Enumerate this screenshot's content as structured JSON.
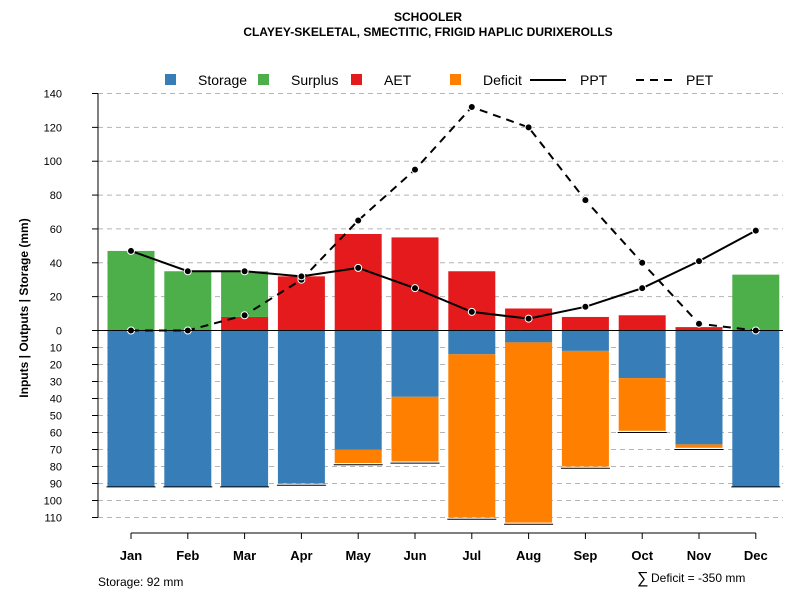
{
  "chart_data": {
    "type": "bar",
    "title": "SCHOOLER",
    "subtitle": "CLAYEY-SKELETAL, SMECTITIC, FRIGID HAPLIC DURIXEROLLS",
    "ylabel": "Inputs | Outputs | Storage     (mm)",
    "categories": [
      "Jan",
      "Feb",
      "Mar",
      "Apr",
      "May",
      "Jun",
      "Jul",
      "Aug",
      "Sep",
      "Oct",
      "Nov",
      "Dec"
    ],
    "y_upper": {
      "lim": [
        0,
        140
      ],
      "ticks": [
        "0",
        "20",
        "40",
        "60",
        "80",
        "100",
        "120",
        "140"
      ]
    },
    "y_lower": {
      "lim": [
        0,
        110
      ],
      "ticks": [
        "10",
        "20",
        "30",
        "40",
        "50",
        "60",
        "70",
        "80",
        "90",
        "100",
        "110"
      ]
    },
    "legend": [
      {
        "label": "Storage",
        "color": "#377EB8",
        "kind": "box"
      },
      {
        "label": "Surplus",
        "color": "#4DAF4A",
        "kind": "box"
      },
      {
        "label": "AET",
        "color": "#E41A1C",
        "kind": "box"
      },
      {
        "label": "Deficit",
        "color": "#FF7F00",
        "kind": "box"
      },
      {
        "label": "PPT",
        "color": "#000000",
        "kind": "solid"
      },
      {
        "label": "PET",
        "color": "#000000",
        "kind": "dashed"
      }
    ],
    "series": [
      {
        "name": "Surplus",
        "values": [
          47,
          35,
          27,
          0,
          0,
          0,
          0,
          0,
          0,
          0,
          0,
          33
        ]
      },
      {
        "name": "AET",
        "values": [
          0,
          0,
          8,
          32,
          57,
          55,
          35,
          13,
          8,
          9,
          2,
          0
        ]
      },
      {
        "name": "Storage",
        "values": [
          92,
          92,
          92,
          90,
          70,
          39,
          14,
          7,
          12,
          28,
          67,
          92
        ]
      },
      {
        "name": "Deficit",
        "values": [
          0,
          0,
          0,
          0,
          8,
          38,
          96,
          106,
          68,
          31,
          2,
          0
        ]
      },
      {
        "name": "PPT",
        "values": [
          47,
          35,
          35,
          32,
          37,
          25,
          11,
          7,
          14,
          25,
          41,
          59
        ]
      },
      {
        "name": "PET",
        "values": [
          0,
          0,
          9,
          30,
          65,
          95,
          132,
          120,
          77,
          40,
          4,
          0
        ]
      }
    ],
    "colors": {
      "storage": "#377EB8",
      "surplus": "#4DAF4A",
      "aet": "#E41A1C",
      "deficit": "#FF7F00"
    },
    "grid": true
  },
  "footer": {
    "storage_note": "Storage: 92 mm",
    "deficit_symbol": "∑",
    "deficit_note": "Deficit = -350 mm"
  }
}
